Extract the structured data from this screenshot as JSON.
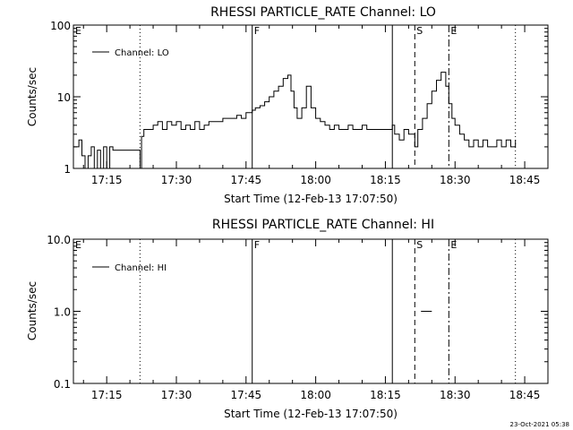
{
  "footer": {
    "timestamp": "23-Oct-2021 05:38"
  },
  "chart_data": [
    {
      "type": "line",
      "title": "RHESSI PARTICLE_RATE Channel: LO",
      "xlabel": "Start Time (12-Feb-13 17:07:50)",
      "ylabel": "Counts/sec",
      "yscale": "log",
      "xlim": [
        "17:07:50",
        "18:50:00"
      ],
      "ylim": [
        1,
        100
      ],
      "xticks": [
        "17:15",
        "17:30",
        "17:45",
        "18:00",
        "18:15",
        "18:30",
        "18:45"
      ],
      "yticks": [
        "1",
        "10",
        "100"
      ],
      "legend": {
        "label": "Channel: LO",
        "position": "top-left"
      },
      "markers": [
        {
          "label": "E",
          "time": "17:07:50",
          "style": "none"
        },
        {
          "label": "",
          "time": "17:22:10",
          "style": "dotted"
        },
        {
          "label": "F",
          "time": "17:46:20",
          "style": "solid"
        },
        {
          "label": "",
          "time": "18:16:30",
          "style": "solid"
        },
        {
          "label": "S",
          "time": "18:21:20",
          "style": "dashed"
        },
        {
          "label": "E",
          "time": "18:28:40",
          "style": "dashdot"
        },
        {
          "label": "",
          "time": "18:43:00",
          "style": "dotted"
        }
      ],
      "series": [
        {
          "x": [
            "17:07:50",
            "17:09:00",
            "17:09:40",
            "17:10:20",
            "17:11:00",
            "17:11:40",
            "17:12:20",
            "17:13:00",
            "17:13:40",
            "17:14:20",
            "17:15:00",
            "17:15:40",
            "17:16:20",
            "17:17:00",
            "17:18:00",
            "17:19:00",
            "17:20:00",
            "17:21:00",
            "17:22:10",
            "17:22:30",
            "17:23:00",
            "17:24:00",
            "17:25:00",
            "17:26:00",
            "17:27:00",
            "17:28:00",
            "17:29:00",
            "17:30:00",
            "17:31:00",
            "17:32:00",
            "17:33:00",
            "17:34:00",
            "17:35:00",
            "17:36:00",
            "17:37:00",
            "17:38:00",
            "17:39:00",
            "17:40:00",
            "17:41:00",
            "17:42:00",
            "17:43:00",
            "17:44:00",
            "17:45:00",
            "17:46:20",
            "17:47:00",
            "17:48:00",
            "17:49:00",
            "17:50:00",
            "17:51:00",
            "17:52:00",
            "17:53:00",
            "17:54:00",
            "17:54:40",
            "17:55:20",
            "17:56:00",
            "17:57:00",
            "17:58:00",
            "17:59:00",
            "18:00:00",
            "18:01:00",
            "18:02:00",
            "18:03:00",
            "18:04:00",
            "18:05:00",
            "18:06:00",
            "18:07:00",
            "18:08:00",
            "18:09:00",
            "18:10:00",
            "18:11:00",
            "18:12:00",
            "18:13:00",
            "18:14:00",
            "18:15:00",
            "18:16:30",
            "18:17:00",
            "18:18:00",
            "18:19:00",
            "18:20:00",
            "18:21:20",
            "18:22:00",
            "18:23:00",
            "18:24:00",
            "18:25:00",
            "18:26:00",
            "18:27:00",
            "18:28:00",
            "18:28:40",
            "18:29:20",
            "18:30:00",
            "18:31:00",
            "18:32:00",
            "18:33:00",
            "18:34:00",
            "18:35:00",
            "18:36:00",
            "18:37:00",
            "18:38:00",
            "18:39:00",
            "18:40:00",
            "18:41:00",
            "18:42:00",
            "18:43:00"
          ],
          "values": [
            2,
            2.5,
            1.5,
            1,
            1.5,
            2,
            1,
            1.8,
            1,
            2,
            1,
            2,
            1.8,
            1.8,
            1.8,
            1.8,
            1.8,
            1.8,
            1,
            2.8,
            3.5,
            3.5,
            4,
            4.5,
            3.5,
            4.5,
            4,
            4.5,
            3.5,
            4,
            3.5,
            4.5,
            3.5,
            4,
            4.5,
            4.5,
            4.5,
            5,
            5,
            5,
            5.5,
            5,
            6,
            6.5,
            7,
            7.5,
            8.5,
            10,
            12,
            14,
            18,
            20,
            12,
            7,
            5,
            7,
            14,
            7,
            5,
            4.5,
            4,
            3.5,
            4,
            3.5,
            3.5,
            4,
            3.5,
            3.5,
            4,
            3.5,
            3.5,
            3.5,
            3.5,
            3.5,
            4,
            3,
            2.5,
            3.5,
            3,
            2,
            3.5,
            5,
            8,
            12,
            17,
            22,
            14,
            8,
            5,
            4,
            3,
            2.5,
            2,
            2.5,
            2,
            2.5,
            2,
            2,
            2.5,
            2,
            2.5,
            2,
            2.5
          ]
        }
      ]
    },
    {
      "type": "line",
      "title": "RHESSI PARTICLE_RATE Channel: HI",
      "xlabel": "Start Time (12-Feb-13 17:07:50)",
      "ylabel": "Counts/sec",
      "yscale": "log",
      "xlim": [
        "17:07:50",
        "18:50:00"
      ],
      "ylim": [
        0.1,
        10
      ],
      "xticks": [
        "17:15",
        "17:30",
        "17:45",
        "18:00",
        "18:15",
        "18:30",
        "18:45"
      ],
      "yticks": [
        "0.1",
        "1.0",
        "10.0"
      ],
      "legend": {
        "label": "Channel: HI",
        "position": "top-left"
      },
      "markers": [
        {
          "label": "E",
          "time": "17:07:50",
          "style": "none"
        },
        {
          "label": "",
          "time": "17:22:10",
          "style": "dotted"
        },
        {
          "label": "F",
          "time": "17:46:20",
          "style": "solid"
        },
        {
          "label": "",
          "time": "18:16:30",
          "style": "solid"
        },
        {
          "label": "S",
          "time": "18:21:20",
          "style": "dashed"
        },
        {
          "label": "E",
          "time": "18:28:40",
          "style": "dashdot"
        },
        {
          "label": "",
          "time": "18:43:00",
          "style": "dotted"
        }
      ],
      "series": [
        {
          "x": [
            "18:22:40",
            "18:25:00"
          ],
          "values": [
            1,
            1
          ]
        }
      ]
    }
  ]
}
